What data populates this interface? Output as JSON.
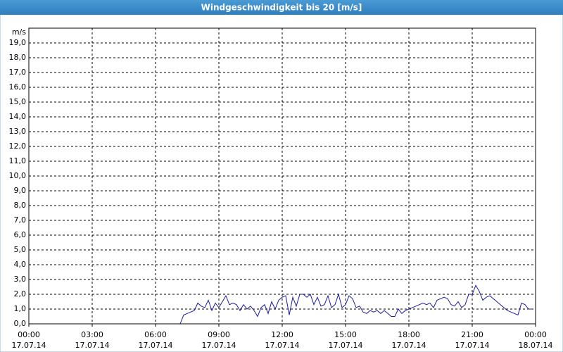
{
  "chart_data": {
    "type": "line",
    "title": "Windgeschwindigkeit bis 20 [m/s]",
    "y_label": "m/s",
    "grid": true,
    "color": "#1a1aa6",
    "xlim": [
      "17.07.14 00:00",
      "18.07.14 00:00"
    ],
    "xticks": [
      {
        "time": "00:00",
        "date": "17.07.14"
      },
      {
        "time": "03:00",
        "date": "17.07.14"
      },
      {
        "time": "06:00",
        "date": "17.07.14"
      },
      {
        "time": "09:00",
        "date": "17.07.14"
      },
      {
        "time": "12:00",
        "date": "17.07.14"
      },
      {
        "time": "15:00",
        "date": "17.07.14"
      },
      {
        "time": "18:00",
        "date": "17.07.14"
      },
      {
        "time": "21:00",
        "date": "17.07.14"
      },
      {
        "time": "00:00",
        "date": "18.07.14"
      }
    ],
    "ylim": [
      0,
      20
    ],
    "yticks": [
      {
        "value": 0,
        "label": "0,0"
      },
      {
        "value": 1,
        "label": "1,0"
      },
      {
        "value": 2,
        "label": "2,0"
      },
      {
        "value": 3,
        "label": "3,0"
      },
      {
        "value": 4,
        "label": "4,0"
      },
      {
        "value": 5,
        "label": "5,0"
      },
      {
        "value": 6,
        "label": "6,0"
      },
      {
        "value": 7,
        "label": "7,0"
      },
      {
        "value": 8,
        "label": "8,0"
      },
      {
        "value": 9,
        "label": "9,0"
      },
      {
        "value": 10,
        "label": "10,0"
      },
      {
        "value": 11,
        "label": "11,0"
      },
      {
        "value": 12,
        "label": "12,0"
      },
      {
        "value": 13,
        "label": "13,0"
      },
      {
        "value": 14,
        "label": "14,0"
      },
      {
        "value": 15,
        "label": "15,0"
      },
      {
        "value": 16,
        "label": "16,0"
      },
      {
        "value": 17,
        "label": "17,0"
      },
      {
        "value": 18,
        "label": "18,0"
      },
      {
        "value": 19,
        "label": "19,0"
      }
    ],
    "x": [
      "17.07.14 07:10",
      "17.07.14 07:20",
      "17.07.14 07:30",
      "17.07.14 07:40",
      "17.07.14 07:50",
      "17.07.14 08:00",
      "17.07.14 08:10",
      "17.07.14 08:20",
      "17.07.14 08:30",
      "17.07.14 08:40",
      "17.07.14 08:50",
      "17.07.14 09:00",
      "17.07.14 09:10",
      "17.07.14 09:20",
      "17.07.14 09:30",
      "17.07.14 09:40",
      "17.07.14 09:50",
      "17.07.14 10:00",
      "17.07.14 10:10",
      "17.07.14 10:20",
      "17.07.14 10:30",
      "17.07.14 10:40",
      "17.07.14 10:50",
      "17.07.14 11:00",
      "17.07.14 11:10",
      "17.07.14 11:20",
      "17.07.14 11:30",
      "17.07.14 11:40",
      "17.07.14 11:50",
      "17.07.14 12:00",
      "17.07.14 12:10",
      "17.07.14 12:20",
      "17.07.14 12:30",
      "17.07.14 12:40",
      "17.07.14 12:50",
      "17.07.14 13:00",
      "17.07.14 13:10",
      "17.07.14 13:20",
      "17.07.14 13:30",
      "17.07.14 13:40",
      "17.07.14 13:50",
      "17.07.14 14:00",
      "17.07.14 14:10",
      "17.07.14 14:20",
      "17.07.14 14:30",
      "17.07.14 14:40",
      "17.07.14 14:50",
      "17.07.14 15:00",
      "17.07.14 15:10",
      "17.07.14 15:20",
      "17.07.14 15:30",
      "17.07.14 15:40",
      "17.07.14 15:50",
      "17.07.14 16:00",
      "17.07.14 16:10",
      "17.07.14 16:20",
      "17.07.14 16:30",
      "17.07.14 16:40",
      "17.07.14 16:50",
      "17.07.14 17:00",
      "17.07.14 17:10",
      "17.07.14 17:20",
      "17.07.14 17:30",
      "17.07.14 17:40",
      "17.07.14 17:50",
      "17.07.14 18:00",
      "17.07.14 18:10",
      "17.07.14 18:20",
      "17.07.14 18:30",
      "17.07.14 18:40",
      "17.07.14 18:50",
      "17.07.14 19:00",
      "17.07.14 19:10",
      "17.07.14 19:20",
      "17.07.14 19:30",
      "17.07.14 19:40",
      "17.07.14 19:50",
      "17.07.14 20:00",
      "17.07.14 20:10",
      "17.07.14 20:20",
      "17.07.14 20:30",
      "17.07.14 20:40",
      "17.07.14 20:50",
      "17.07.14 21:00",
      "17.07.14 21:10",
      "17.07.14 21:20",
      "17.07.14 21:30",
      "17.07.14 21:40",
      "17.07.14 21:50",
      "17.07.14 22:00",
      "17.07.14 22:10",
      "17.07.14 22:20",
      "17.07.14 22:30",
      "17.07.14 22:40",
      "17.07.14 22:50",
      "17.07.14 23:00",
      "17.07.14 23:10",
      "17.07.14 23:20",
      "17.07.14 23:30",
      "17.07.14 23:40",
      "17.07.14 23:50"
    ],
    "values": [
      0.0,
      0.6,
      0.7,
      0.8,
      0.9,
      1.4,
      1.2,
      1.1,
      1.6,
      0.9,
      1.4,
      1.1,
      1.5,
      1.9,
      1.3,
      1.4,
      1.3,
      0.9,
      1.3,
      1.0,
      1.2,
      0.9,
      0.5,
      1.1,
      1.3,
      0.7,
      1.5,
      1.0,
      1.6,
      1.8,
      1.9,
      0.6,
      1.8,
      1.2,
      2.0,
      2.0,
      1.8,
      2.0,
      1.3,
      1.8,
      1.2,
      1.3,
      1.9,
      1.1,
      1.3,
      2.0,
      1.1,
      1.3,
      1.9,
      1.7,
      1.1,
      1.2,
      0.8,
      0.7,
      0.9,
      0.8,
      0.9,
      0.7,
      0.9,
      0.7,
      0.5,
      0.5,
      1.0,
      0.7,
      0.9,
      1.0,
      1.1,
      1.2,
      1.3,
      1.4,
      1.3,
      1.4,
      1.1,
      1.6,
      1.7,
      1.8,
      1.7,
      1.3,
      1.2,
      1.5,
      1.1,
      1.3,
      2.0,
      2.0,
      2.6,
      2.2,
      1.6,
      1.8,
      1.9,
      1.7,
      1.5,
      1.3,
      1.1,
      0.9,
      0.8,
      0.7,
      0.6,
      1.4,
      1.3,
      1.0,
      1.0
    ]
  }
}
